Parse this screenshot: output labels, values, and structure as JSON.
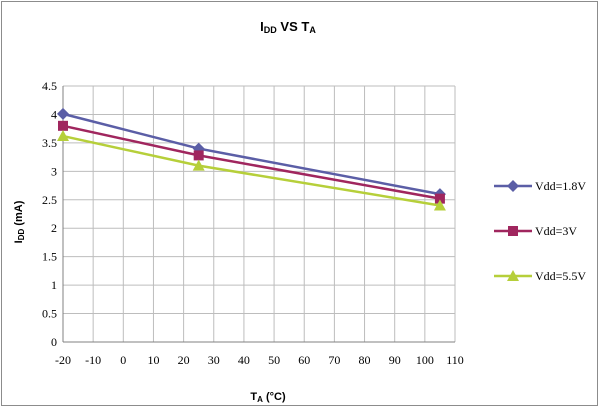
{
  "chart_data": {
    "type": "line",
    "title": {
      "main1": "I",
      "sub1": "DD",
      "main2": " VS T",
      "sub2": "A"
    },
    "xlabel": {
      "main1": "T",
      "sub1": "A",
      "main2": " (°C)"
    },
    "ylabel": {
      "main1": "I",
      "sub1": "DD",
      "main2": " (mA)"
    },
    "xlim": [
      -20,
      110
    ],
    "ylim": [
      0,
      4.5
    ],
    "x_ticks": [
      -20,
      -10,
      0,
      10,
      20,
      30,
      40,
      50,
      60,
      70,
      80,
      90,
      100,
      110
    ],
    "y_ticks": [
      0,
      0.5,
      1,
      1.5,
      2,
      2.5,
      3,
      3.5,
      4,
      4.5
    ],
    "y_tick_labels": [
      "0",
      "0.5",
      "1",
      "1.5",
      "2",
      "2.5",
      "3",
      "3.5",
      "4",
      "4.5"
    ],
    "grid": true,
    "legend_position": "right",
    "series": [
      {
        "name": "Vdd=1.8V",
        "color": "#5b5ea6",
        "marker": "diamond",
        "x": [
          -20,
          25,
          105
        ],
        "y": [
          4.01,
          3.4,
          2.6
        ]
      },
      {
        "name": "Vdd=3V",
        "color": "#a0265e",
        "marker": "square",
        "x": [
          -20,
          25,
          105
        ],
        "y": [
          3.8,
          3.28,
          2.52
        ]
      },
      {
        "name": "Vdd=5.5V",
        "color": "#b6cf3a",
        "marker": "triangle",
        "x": [
          -20,
          25,
          105
        ],
        "y": [
          3.62,
          3.1,
          2.4
        ]
      }
    ]
  }
}
